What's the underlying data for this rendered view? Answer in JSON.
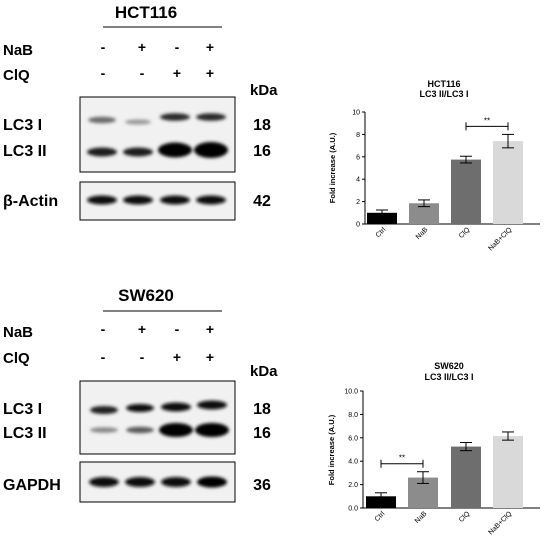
{
  "panels": [
    {
      "cell_line": "HCT116",
      "treatments": [
        {
          "name": "NaB",
          "signs": [
            "-",
            "+",
            "-",
            "+"
          ]
        },
        {
          "name": "ClQ",
          "signs": [
            "-",
            "-",
            "+",
            "+"
          ]
        }
      ],
      "kda_label": "kDa",
      "blots": [
        {
          "bands": [
            "LC3 I",
            "LC3 II"
          ],
          "kda": [
            "18",
            "16"
          ]
        },
        {
          "bands": [
            "β-Actin"
          ],
          "kda": [
            "42"
          ]
        }
      ]
    },
    {
      "cell_line": "SW620",
      "treatments": [
        {
          "name": "NaB",
          "signs": [
            "-",
            "+",
            "-",
            "+"
          ]
        },
        {
          "name": "ClQ",
          "signs": [
            "-",
            "-",
            "+",
            "+"
          ]
        }
      ],
      "kda_label": "kDa",
      "blots": [
        {
          "bands": [
            "LC3 I",
            "LC3 II"
          ],
          "kda": [
            "18",
            "16"
          ]
        },
        {
          "bands": [
            "GAPDH"
          ],
          "kda": [
            "36"
          ]
        }
      ]
    }
  ],
  "chart_data": [
    {
      "type": "bar",
      "title": "HCT116",
      "subtitle": "LC3 II/LC3 I",
      "ylabel": "Fold increase (A.U.)",
      "categories": [
        "Ctrl",
        "NaB",
        "ClQ",
        "NaB+ClQ"
      ],
      "values": [
        1.0,
        1.85,
        5.75,
        7.4
      ],
      "errors": [
        0.25,
        0.3,
        0.3,
        0.6
      ],
      "colors": [
        "#000000",
        "#8c8c8c",
        "#6e6e6e",
        "#d9d9d9"
      ],
      "ylim": [
        0,
        10
      ],
      "yticks": [
        "0",
        "2",
        "4",
        "6",
        "8",
        "10"
      ],
      "significance": [
        {
          "from": 2,
          "to": 3,
          "label": "**"
        }
      ]
    },
    {
      "type": "bar",
      "title": "SW620",
      "subtitle": "LC3 II/LC3 I",
      "ylabel": "Fold increase (A.U.)",
      "categories": [
        "Ctrl",
        "NaB",
        "ClQ",
        "NaB+ClQ"
      ],
      "values": [
        1.0,
        2.6,
        5.25,
        6.15
      ],
      "errors": [
        0.3,
        0.5,
        0.35,
        0.35
      ],
      "colors": [
        "#000000",
        "#8c8c8c",
        "#6e6e6e",
        "#d9d9d9"
      ],
      "ylim": [
        0,
        10
      ],
      "yticks": [
        "0.0",
        "2.0",
        "4.0",
        "6.0",
        "8.0",
        "10.0"
      ],
      "significance": [
        {
          "from": 0,
          "to": 1,
          "label": "**"
        }
      ]
    }
  ]
}
